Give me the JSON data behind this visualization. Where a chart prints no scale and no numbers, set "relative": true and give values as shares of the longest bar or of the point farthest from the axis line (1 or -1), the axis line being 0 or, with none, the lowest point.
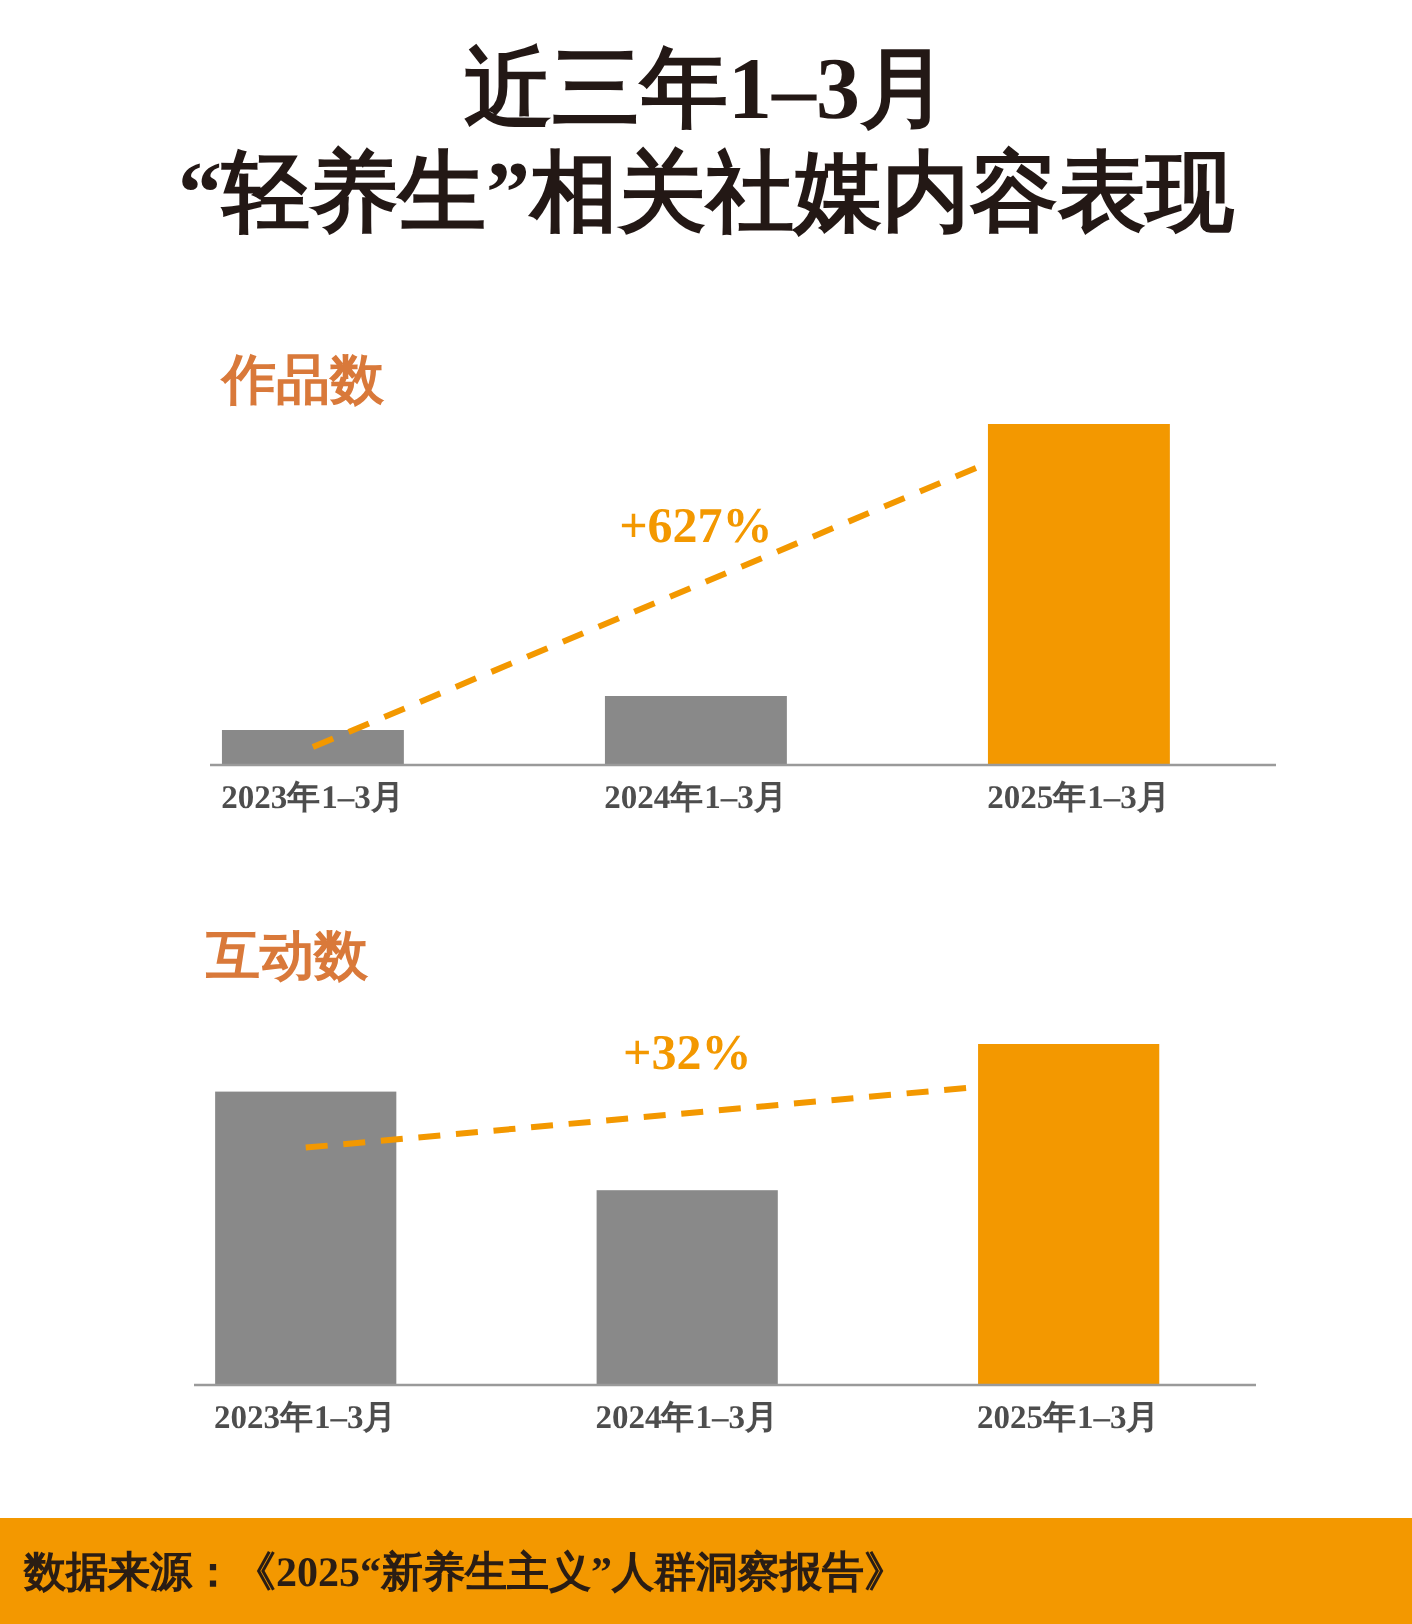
{
  "chart_data": [
    {
      "type": "bar",
      "title": "近三年1–3月\n“轻养生”相关社媒内容表现",
      "subtitle": "作品数",
      "categories": [
        "2023年1–3月",
        "2024年1–3月",
        "2025年1–3月"
      ],
      "values": [
        0.1,
        0.2,
        1
      ],
      "colors": [
        "#898989",
        "#898989",
        "#f39800"
      ],
      "relative": true,
      "annotations": [
        "+627%"
      ]
    },
    {
      "type": "bar",
      "subtitle": "互动数",
      "categories": [
        "2023年1–3月",
        "2024年1–3月",
        "2025年1–3月"
      ],
      "values": [
        0.86,
        0.57,
        1
      ],
      "colors": [
        "#898989",
        "#898989",
        "#f39800"
      ],
      "relative": true,
      "annotations": [
        "+32%",
        "数据来源：《2025“新养生主义”人群洞察报告》"
      ]
    }
  ]
}
